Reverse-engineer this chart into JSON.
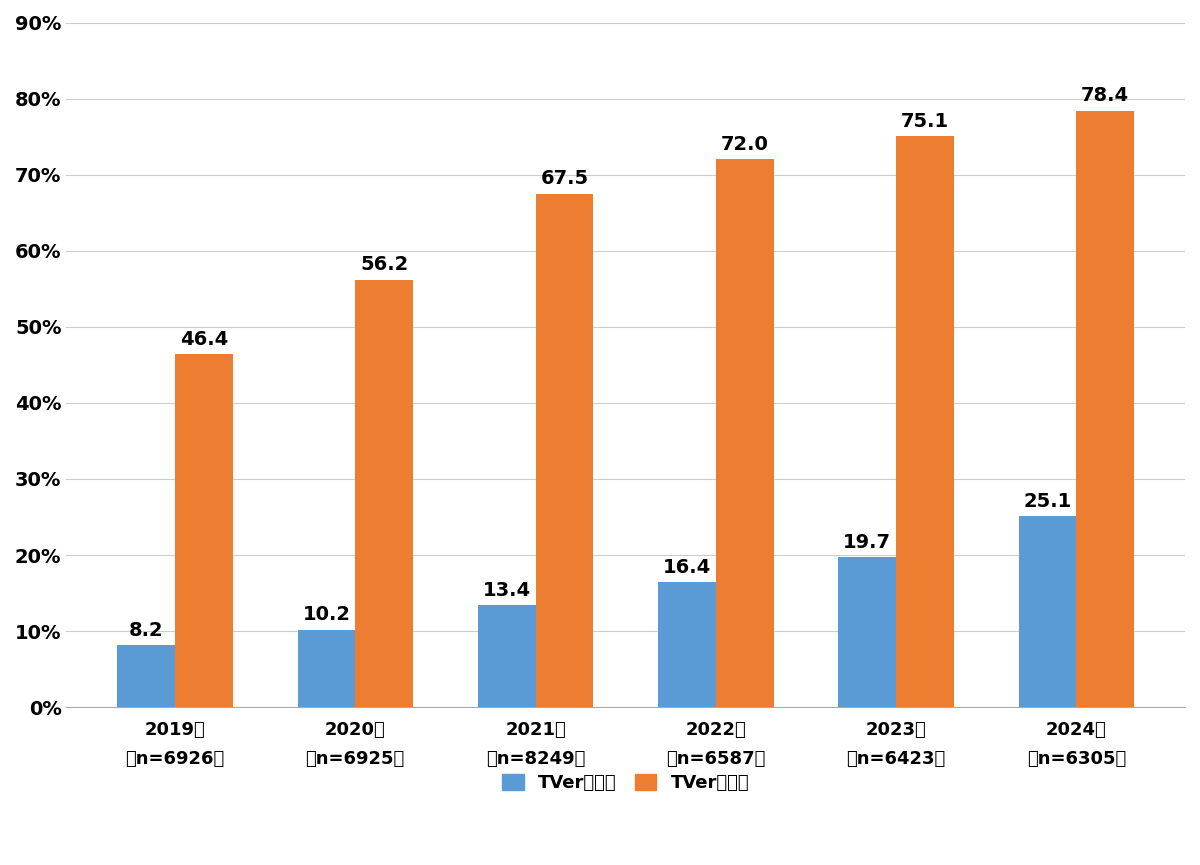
{
  "years": [
    "2019年\n（n=6926）",
    "2020年\n（n=6925）",
    "2021年\n（n=8249）",
    "2022年\n（n=6587）",
    "2023年\n（n=6423）",
    "2024年\n（n=6305）"
  ],
  "usage_rate": [
    8.2,
    10.2,
    13.4,
    16.4,
    19.7,
    25.1
  ],
  "awareness_rate": [
    46.4,
    56.2,
    67.5,
    72.0,
    75.1,
    78.4
  ],
  "usage_color": "#5B9BD5",
  "awareness_color": "#ED7D31",
  "bar_width": 0.32,
  "ylim": [
    0,
    90
  ],
  "yticks": [
    0,
    10,
    20,
    30,
    40,
    50,
    60,
    70,
    80,
    90
  ],
  "ytick_labels": [
    "0%",
    "10%",
    "20%",
    "30%",
    "40%",
    "50%",
    "60%",
    "70%",
    "80%",
    "90%"
  ],
  "grid_color": "#CCCCCC",
  "legend_usage": "TVer利用率",
  "legend_awareness": "TVer認知率",
  "background_color": "#FFFFFF",
  "tick_fontsize": 14,
  "value_fontsize": 14,
  "legend_fontsize": 13,
  "xtick_fontsize": 13
}
